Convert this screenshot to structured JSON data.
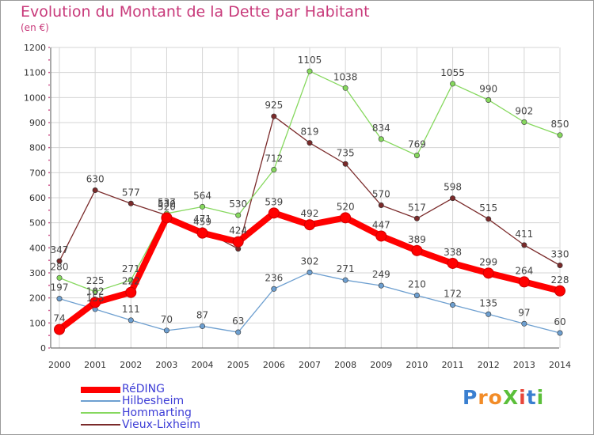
{
  "header": {
    "title": "Evolution du Montant de la Dette par Habitant",
    "subtitle": "(en €)"
  },
  "logo": {
    "text": "ProXiti",
    "colors": [
      "#3a7fd0",
      "#f28c28",
      "#f28c28",
      "#5bbf3a",
      "#e8463a",
      "#3a7fd0",
      "#5bbf3a"
    ]
  },
  "chart_data": {
    "type": "line",
    "title": "Evolution du Montant de la Dette par Habitant",
    "ylabel": "(en €)",
    "xlabel": "",
    "x": [
      "2000",
      "2001",
      "2002",
      "2003",
      "2004",
      "2005",
      "2006",
      "2007",
      "2008",
      "2009",
      "2010",
      "2011",
      "2012",
      "2013",
      "2014"
    ],
    "ylim": [
      0,
      1200
    ],
    "yticks": [
      "0",
      "100",
      "200",
      "300",
      "400",
      "500",
      "600",
      "700",
      "800",
      "900",
      "1000",
      "1100",
      "1200"
    ],
    "grid": true,
    "legend_position": "bottom-left",
    "series": [
      {
        "name": "RéDING",
        "color": "#ff0000",
        "values": [
          74,
          182,
          222,
          520,
          459,
          424,
          539,
          492,
          520,
          447,
          389,
          338,
          299,
          264,
          228
        ],
        "labels": [
          "74",
          "182",
          "222",
          "520",
          "459",
          "424",
          "539",
          "492",
          "520",
          "447",
          "389",
          "338",
          "299",
          "264",
          "228"
        ]
      },
      {
        "name": "Hilbesheim",
        "color": "#6d9fd0",
        "values": [
          197,
          155,
          111,
          70,
          87,
          63,
          236,
          302,
          271,
          249,
          210,
          172,
          135,
          97,
          60
        ],
        "labels": [
          "197",
          "155",
          "111",
          "70",
          "87",
          "63",
          "236",
          "302",
          "271",
          "249",
          "210",
          "172",
          "135",
          "97",
          "60"
        ]
      },
      {
        "name": "Hommarting",
        "color": "#86d85e",
        "values": [
          280,
          225,
          271,
          537,
          564,
          530,
          712,
          1105,
          1038,
          834,
          769,
          1055,
          990,
          902,
          850
        ],
        "labels": [
          "280",
          "225",
          "271",
          "537",
          "564",
          "530",
          "712",
          "1105",
          "1038",
          "834",
          "769",
          "1055",
          "990",
          "902",
          "850"
        ]
      },
      {
        "name": "Vieux-Lixheim",
        "color": "#7a2a2a",
        "values": [
          347,
          630,
          577,
          530,
          471,
          396,
          925,
          819,
          735,
          570,
          517,
          598,
          515,
          411,
          330
        ],
        "labels": [
          "347",
          "630",
          "577",
          "530",
          "471",
          "",
          "925",
          "819",
          "735",
          "570",
          "517",
          "598",
          "515",
          "411",
          "330"
        ]
      }
    ]
  }
}
